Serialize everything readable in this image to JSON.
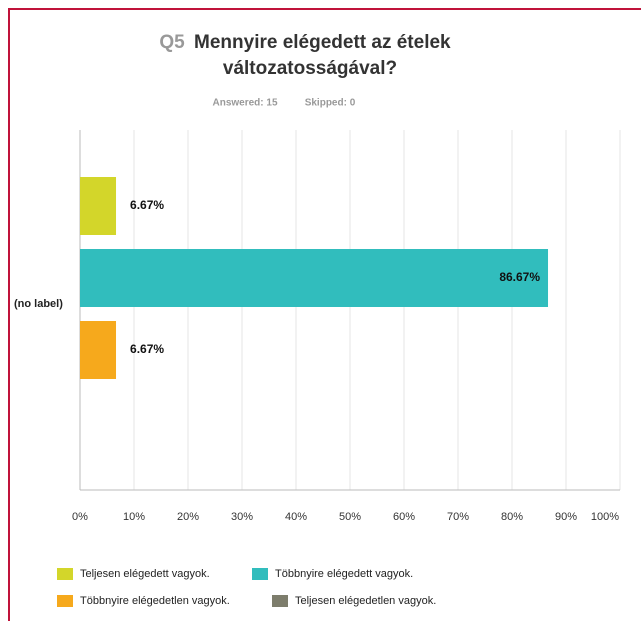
{
  "chart_data": {
    "type": "bar",
    "orientation": "horizontal",
    "question_number": "Q5",
    "title_lines": [
      "Mennyire elégedett az ételek",
      "változatosságával?"
    ],
    "answered": "Answered: 15",
    "skipped": "Skipped: 0",
    "categories": [
      "(no label)"
    ],
    "series": [
      {
        "name": "Teljesen elégedett vagyok.",
        "color": "#d3d62a",
        "values": [
          6.67
        ],
        "value_labels": [
          "6.67%"
        ]
      },
      {
        "name": "Többnyire elégedett vagyok.",
        "color": "#31bdbd",
        "values": [
          86.67
        ],
        "value_labels": [
          "86.67%"
        ]
      },
      {
        "name": "Többnyire elégedetlen vagyok.",
        "color": "#f6a91c",
        "values": [
          6.67
        ],
        "value_labels": [
          "6.67%"
        ]
      },
      {
        "name": "Teljesen elégedetlen vagyok.",
        "color": "#7d7d6c",
        "values": [
          0
        ]
      }
    ],
    "xlim": [
      0,
      100
    ],
    "xticks": [
      {
        "value": 0,
        "label": "0%"
      },
      {
        "value": 10,
        "label": "10%"
      },
      {
        "value": 20,
        "label": "20%"
      },
      {
        "value": 30,
        "label": "30%"
      },
      {
        "value": 40,
        "label": "40%"
      },
      {
        "value": 50,
        "label": "50%"
      },
      {
        "value": 60,
        "label": "60%"
      },
      {
        "value": 70,
        "label": "70%"
      },
      {
        "value": 80,
        "label": "80%"
      },
      {
        "value": 90,
        "label": "90%"
      },
      {
        "value": 100,
        "label": "100%"
      }
    ],
    "grid": true,
    "legend": "bottom"
  }
}
